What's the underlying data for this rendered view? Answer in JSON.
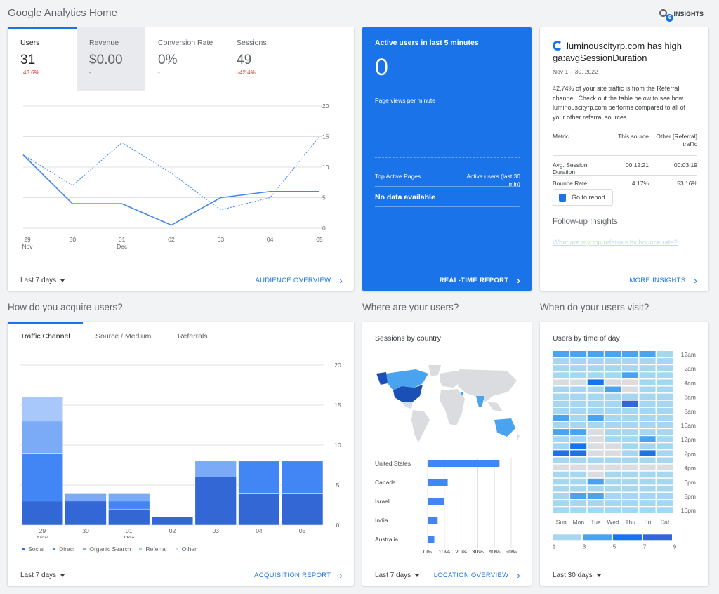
{
  "page": {
    "title": "Google Analytics Home",
    "insights_label": "INSIGHTS",
    "insights_badge": "6"
  },
  "audience": {
    "metrics": [
      {
        "name": "Users",
        "value": "31",
        "delta": "43.6%",
        "delta_dir": "down"
      },
      {
        "name": "Revenue",
        "value": "$0.00",
        "delta": "-",
        "delta_dir": "none"
      },
      {
        "name": "Conversion Rate",
        "value": "0%",
        "delta": "-",
        "delta_dir": "none"
      },
      {
        "name": "Sessions",
        "value": "49",
        "delta": "42.4%",
        "delta_dir": "down"
      }
    ],
    "range": "Last 7 days",
    "link": "AUDIENCE OVERVIEW"
  },
  "users_chart": {
    "chart_data": {
      "type": "line",
      "x": [
        "29 Nov",
        "30",
        "01 Dec",
        "02",
        "03",
        "04",
        "05"
      ],
      "y_ticks": [
        "20",
        "15",
        "10",
        "5",
        "0"
      ],
      "ylim": [
        0,
        20
      ],
      "series": [
        {
          "style": "solid",
          "values": [
            12,
            4,
            4,
            0.5,
            5,
            6,
            6
          ]
        },
        {
          "style": "dashed",
          "values": [
            12,
            7,
            14,
            9,
            3,
            5,
            15
          ]
        }
      ]
    }
  },
  "realtime": {
    "title": "Active users in last 5 minutes",
    "value": "0",
    "pageviews_label": "Page views per minute",
    "top_pages_label": "Top Active Pages",
    "active_users_label": "Active users (last 30 min)",
    "no_data": "No data available",
    "link": "REAL-TIME REPORT"
  },
  "insight": {
    "headline": "luminouscityrp.com has high ga:avgSessionDuration",
    "date": "Nov 1 – 30, 2022",
    "description": "42.74% of your site traffic is from the Referral channel. Check out the table below to see how luminouscityrp.com performs compared to all of your other referral sources.",
    "headers": [
      "Metric",
      "This source",
      "Other [Referral] traffic"
    ],
    "rows": [
      [
        "Avg. Session Duration",
        "00:12:21",
        "00:03:19"
      ],
      [
        "Bounce Rate",
        "4.17%",
        "53.16%"
      ]
    ],
    "goto_label": "Go to report",
    "followup_title": "Follow-up Insights",
    "followup_question": "What are my top referrals by bounce rate?",
    "link": "MORE INSIGHTS"
  },
  "acquisition": {
    "section_title": "How do you acquire users?",
    "tabs": [
      "Traffic Channel",
      "Source / Medium",
      "Referrals"
    ],
    "range": "Last 7 days",
    "link": "ACQUISITION REPORT",
    "legend": [
      {
        "name": "Social",
        "color": "#3367d6"
      },
      {
        "name": "Direct",
        "color": "#4285f4"
      },
      {
        "name": "Organic Search",
        "color": "#7baaf7"
      },
      {
        "name": "Referral",
        "color": "#a8c7fa"
      },
      {
        "name": "Other",
        "color": "#c6dafc"
      }
    ],
    "chart_data": {
      "type": "bar",
      "stacked": true,
      "categories": [
        "29 Nov",
        "30",
        "01 Dec",
        "02",
        "03",
        "04",
        "05"
      ],
      "y_ticks": [
        "20",
        "15",
        "10",
        "5",
        "0"
      ],
      "ylim": [
        0,
        20
      ],
      "series": [
        {
          "name": "Social",
          "values": [
            3,
            3,
            2,
            1,
            6,
            4,
            4
          ]
        },
        {
          "name": "Direct",
          "values": [
            6,
            0,
            1,
            0,
            0,
            4,
            4
          ]
        },
        {
          "name": "Organic Search",
          "values": [
            4,
            1,
            1,
            0,
            2,
            0,
            0
          ]
        },
        {
          "name": "Referral",
          "values": [
            3,
            0,
            0,
            0,
            0,
            0,
            0
          ]
        },
        {
          "name": "Other",
          "values": [
            0,
            0,
            0,
            0,
            0,
            0,
            0
          ]
        }
      ]
    }
  },
  "location": {
    "section_title": "Where are your users?",
    "chart_title": "Sessions by country",
    "range": "Last 7 days",
    "link": "LOCATION OVERVIEW",
    "chart_data": {
      "type": "bar",
      "orientation": "horizontal",
      "categories": [
        "United States",
        "Canada",
        "Israel",
        "India",
        "Australia"
      ],
      "values": [
        43,
        12,
        10,
        6,
        4
      ],
      "x_ticks": [
        "0%",
        "10%",
        "20%",
        "30%",
        "40%",
        "50%"
      ],
      "xlim": [
        0,
        50
      ]
    }
  },
  "time_of_day": {
    "section_title": "When do your users visit?",
    "chart_title": "Users by time of day",
    "range": "Last 30 days",
    "days": [
      "Sun",
      "Mon",
      "Tue",
      "Wed",
      "Thu",
      "Fri",
      "Sat"
    ],
    "hour_labels": [
      "12am",
      "2am",
      "4am",
      "6am",
      "8am",
      "10am",
      "12pm",
      "2pm",
      "4pm",
      "6pm",
      "8pm",
      "10pm"
    ],
    "scale_labels": [
      "1",
      "3",
      "5",
      "7",
      "9"
    ],
    "scale_colors": [
      "#a7d7f0",
      "#4aa3ef",
      "#1a73e8",
      "#3367d6"
    ],
    "chart_data": {
      "type": "heatmap",
      "grid": [
        [
          2,
          2,
          2,
          2,
          2,
          2,
          1
        ],
        [
          1,
          1,
          1,
          1,
          1,
          1,
          1
        ],
        [
          1,
          1,
          1,
          1,
          1,
          1,
          1
        ],
        [
          1,
          1,
          1,
          1,
          2,
          1,
          1
        ],
        [
          0,
          0,
          3,
          0,
          0,
          1,
          1
        ],
        [
          1,
          1,
          1,
          2,
          0,
          1,
          1
        ],
        [
          1,
          1,
          1,
          1,
          1,
          1,
          1
        ],
        [
          1,
          1,
          1,
          1,
          4,
          1,
          1
        ],
        [
          1,
          1,
          1,
          1,
          1,
          1,
          1
        ],
        [
          2,
          1,
          2,
          1,
          1,
          1,
          1
        ],
        [
          1,
          1,
          1,
          1,
          1,
          1,
          1
        ],
        [
          2,
          2,
          0,
          1,
          1,
          1,
          1
        ],
        [
          1,
          1,
          0,
          1,
          1,
          2,
          1
        ],
        [
          1,
          3,
          0,
          0,
          1,
          1,
          1
        ],
        [
          3,
          3,
          0,
          0,
          1,
          3,
          1
        ],
        [
          1,
          1,
          1,
          1,
          1,
          1,
          1
        ],
        [
          0,
          0,
          0,
          0,
          0,
          0,
          0
        ],
        [
          1,
          1,
          0,
          1,
          1,
          1,
          1
        ],
        [
          1,
          1,
          2,
          1,
          1,
          1,
          1
        ],
        [
          1,
          1,
          1,
          1,
          1,
          1,
          1
        ],
        [
          1,
          2,
          2,
          1,
          1,
          1,
          1
        ],
        [
          1,
          1,
          1,
          1,
          1,
          1,
          1
        ],
        [
          1,
          1,
          1,
          1,
          1,
          1,
          1
        ]
      ]
    }
  }
}
